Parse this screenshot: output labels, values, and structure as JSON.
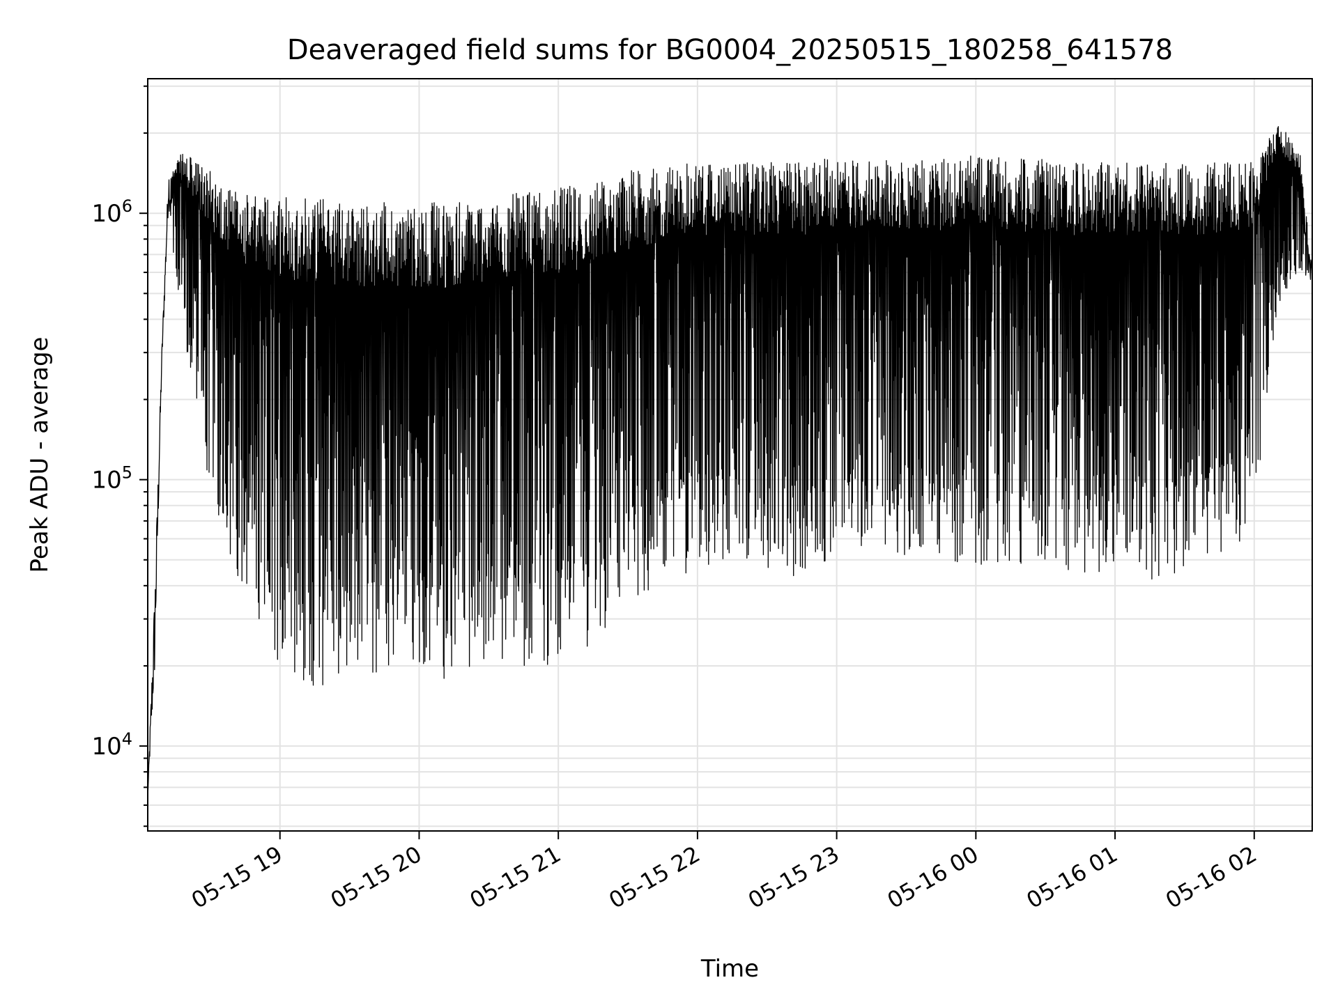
{
  "chart_data": {
    "type": "line",
    "title": "Deaveraged field sums for BG0004_20250515_180258_641578",
    "xlabel": "Time",
    "ylabel": "Peak ADU - average",
    "yscale": "log",
    "ylim": [
      4800,
      3200000
    ],
    "xlim": [
      "2025-05-15 18:03",
      "2025-05-16 02:25"
    ],
    "grid": true,
    "line_color": "#000000",
    "x_ticks": [
      {
        "value": "2025-05-15 19:00",
        "label": "05-15 19"
      },
      {
        "value": "2025-05-15 20:00",
        "label": "05-15 20"
      },
      {
        "value": "2025-05-15 21:00",
        "label": "05-15 21"
      },
      {
        "value": "2025-05-15 22:00",
        "label": "05-15 22"
      },
      {
        "value": "2025-05-15 23:00",
        "label": "05-15 23"
      },
      {
        "value": "2025-05-16 00:00",
        "label": "05-16 00"
      },
      {
        "value": "2025-05-16 01:00",
        "label": "05-16 01"
      },
      {
        "value": "2025-05-16 02:00",
        "label": "05-16 02"
      }
    ],
    "y_ticks": [
      {
        "value": 10000,
        "base": "10",
        "exp": "4"
      },
      {
        "value": 100000,
        "base": "10",
        "exp": "5"
      },
      {
        "value": 1000000,
        "base": "10",
        "exp": "6"
      }
    ],
    "series": [
      {
        "x": [
          "2025-05-15 18:03",
          "2025-05-15 18:06",
          "2025-05-15 18:09",
          "2025-05-15 18:12",
          "2025-05-15 18:15",
          "2025-05-15 18:18",
          "2025-05-15 18:20",
          "2025-05-15 18:23",
          "2025-05-15 18:27",
          "2025-05-15 18:32",
          "2025-05-15 18:38",
          "2025-05-15 18:44",
          "2025-05-15 18:50",
          "2025-05-15 18:56",
          "2025-05-15 19:05",
          "2025-05-15 19:15",
          "2025-05-15 19:25",
          "2025-05-15 19:35",
          "2025-05-15 19:45",
          "2025-05-15 20:00",
          "2025-05-15 20:15",
          "2025-05-15 20:30",
          "2025-05-15 20:45",
          "2025-05-15 21:00",
          "2025-05-15 21:15",
          "2025-05-15 21:30",
          "2025-05-15 21:45",
          "2025-05-15 22:00",
          "2025-05-15 22:15",
          "2025-05-15 22:30",
          "2025-05-15 22:45",
          "2025-05-15 23:00",
          "2025-05-15 23:15",
          "2025-05-15 23:30",
          "2025-05-15 23:45",
          "2025-05-16 00:00",
          "2025-05-16 00:15",
          "2025-05-16 00:30",
          "2025-05-16 00:45",
          "2025-05-16 01:00",
          "2025-05-16 01:15",
          "2025-05-16 01:30",
          "2025-05-16 01:45",
          "2025-05-16 02:00",
          "2025-05-16 02:10",
          "2025-05-16 02:20",
          "2025-05-16 02:25"
        ],
        "y_max": [
          6500,
          40000,
          300000,
          1500000,
          1550000,
          1700000,
          1650000,
          1600000,
          1500000,
          1400000,
          1250000,
          1200000,
          1150000,
          1200000,
          1200000,
          1150000,
          1150000,
          1100000,
          1100000,
          1100000,
          1100000,
          1150000,
          1200000,
          1250000,
          1300000,
          1450000,
          1500000,
          1550000,
          1550000,
          1550000,
          1600000,
          1600000,
          1600000,
          1600000,
          1600000,
          1650000,
          1600000,
          1600000,
          1550000,
          1550000,
          1550000,
          1550000,
          1550000,
          1600000,
          2300000,
          1700000,
          600000
        ],
        "y_min": [
          6500,
          18000,
          250000,
          1100000,
          500000,
          450000,
          300000,
          180000,
          120000,
          80000,
          50000,
          40000,
          28000,
          22000,
          18000,
          16000,
          17000,
          19000,
          18000,
          18500,
          17500,
          19000,
          20000,
          20000,
          22000,
          30000,
          42000,
          45000,
          50000,
          45000,
          40000,
          55000,
          55000,
          52000,
          50000,
          48000,
          48000,
          45000,
          45000,
          45000,
          42000,
          45000,
          48000,
          60000,
          450000,
          600000,
          550000
        ]
      }
    ]
  }
}
